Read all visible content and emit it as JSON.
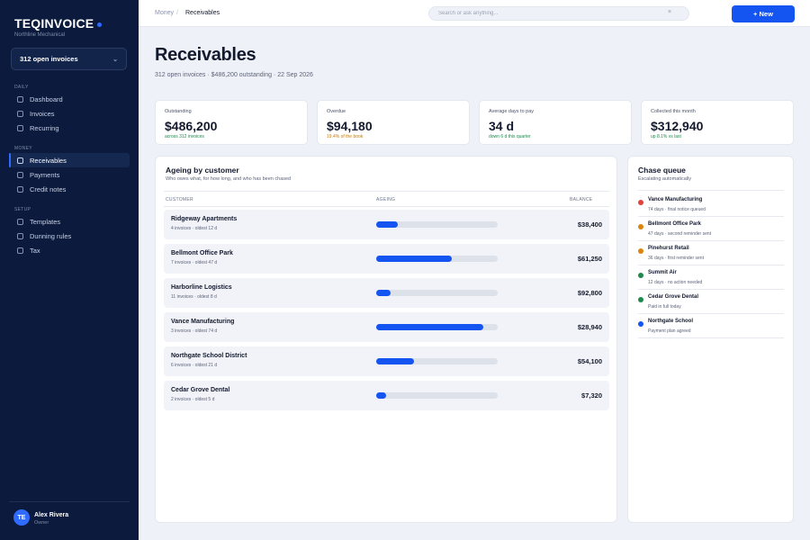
{
  "app": {
    "brand": "TEQINVOICE",
    "company": "Northline Mechanical",
    "switcher": "312 open invoices"
  },
  "sidebar": {
    "sections": [
      {
        "heading": "DAILY",
        "items": [
          {
            "label": "Dashboard",
            "active": false
          },
          {
            "label": "Invoices",
            "active": false
          },
          {
            "label": "Recurring",
            "active": false
          }
        ]
      },
      {
        "heading": "MONEY",
        "items": [
          {
            "label": "Receivables",
            "active": true
          },
          {
            "label": "Payments",
            "active": false
          },
          {
            "label": "Credit notes",
            "active": false
          }
        ]
      },
      {
        "heading": "SETUP",
        "items": [
          {
            "label": "Templates",
            "active": false
          },
          {
            "label": "Dunning rules",
            "active": false
          },
          {
            "label": "Tax",
            "active": false
          }
        ]
      }
    ],
    "user": {
      "initials": "TE",
      "name": "Alex Rivera",
      "role": "Owner"
    }
  },
  "topbar": {
    "breadcrumb_parent": "Money",
    "breadcrumb_sep": "/",
    "breadcrumb_current": "Receivables",
    "search_placeholder": "Search or ask anything...",
    "search_clear": "×",
    "new_button": "+ New"
  },
  "page": {
    "title": "Receivables",
    "subtitle": "312 open invoices · $486,200 outstanding · 22 Sep 2026"
  },
  "kpis": [
    {
      "label": "Outstanding",
      "value": "$486,200",
      "note": "across 312 invoices",
      "note_color": "#1f8a4c"
    },
    {
      "label": "Overdue",
      "value": "$94,180",
      "note": "19.4% of the book",
      "note_color": "#c77a0a"
    },
    {
      "label": "Average days to pay",
      "value": "34 d",
      "note": "down 6 d this quarter",
      "note_color": "#1f8a4c"
    },
    {
      "label": "Collected this month",
      "value": "$312,940",
      "note": "up 8.1% vs last",
      "note_color": "#1f8a4c"
    }
  ],
  "ageing": {
    "title": "Ageing by customer",
    "subtitle": "Who owes what, for how long, and who has been chased",
    "columns": {
      "customer": "CUSTOMER",
      "ageing": "AGEING",
      "balance": "BALANCE"
    },
    "rows": [
      {
        "name": "Ridgeway Apartments",
        "meta": "4 invoices · oldest 12 d",
        "ageing_pct": 18,
        "balance": "$38,400"
      },
      {
        "name": "Bellmont Office Park",
        "meta": "7 invoices · oldest 47 d",
        "ageing_pct": 62,
        "balance": "$61,250"
      },
      {
        "name": "Harborline Logistics",
        "meta": "11 invoices · oldest 8 d",
        "ageing_pct": 12,
        "balance": "$92,800"
      },
      {
        "name": "Vance Manufacturing",
        "meta": "3 invoices · oldest 74 d",
        "ageing_pct": 88,
        "balance": "$28,940"
      },
      {
        "name": "Northgate School District",
        "meta": "6 invoices · oldest 21 d",
        "ageing_pct": 31,
        "balance": "$54,100"
      },
      {
        "name": "Cedar Grove Dental",
        "meta": "2 invoices · oldest 5 d",
        "ageing_pct": 8,
        "balance": "$7,320"
      }
    ]
  },
  "chase": {
    "title": "Chase queue",
    "subtitle": "Escalating automatically",
    "items": [
      {
        "name": "Vance Manufacturing",
        "meta": "74 days · final notice queued",
        "color": "#e0413a"
      },
      {
        "name": "Bellmont Office Park",
        "meta": "47 days · second reminder sent",
        "color": "#d9860f"
      },
      {
        "name": "Pinehurst Retail",
        "meta": "36 days · first reminder sent",
        "color": "#d9860f"
      },
      {
        "name": "Summit Air",
        "meta": "12 days · no action needed",
        "color": "#1f8a4c"
      },
      {
        "name": "Cedar Grove Dental",
        "meta": "Paid in full today",
        "color": "#1f8a4c"
      },
      {
        "name": "Northgate School",
        "meta": "Payment plan agreed",
        "color": "#1455f2"
      }
    ]
  }
}
